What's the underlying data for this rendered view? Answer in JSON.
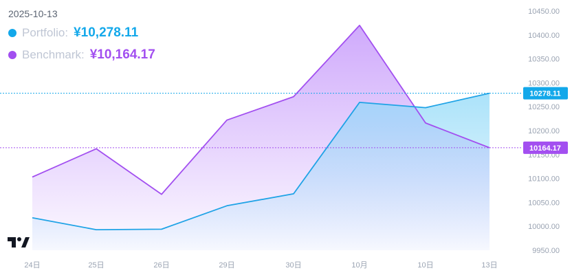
{
  "legend": {
    "date": "2025-10-13",
    "items": [
      {
        "name": "Portfolio:",
        "value": "¥10,278.11",
        "color": "#1aa7e8"
      },
      {
        "name": "Benchmark:",
        "value": "¥10,164.17",
        "color": "#a24ff0"
      }
    ]
  },
  "colors": {
    "portfolio": "#1fa3e6",
    "benchmark": "#a24ff0",
    "portfolio_tag": "#13a8ea",
    "benchmark_tag": "#a34ff0"
  },
  "logo_icon": "tradingview-logo-icon",
  "chart_data": {
    "type": "area",
    "x": [
      "24日",
      "25日",
      "26日",
      "29日",
      "30日",
      "10月",
      "10日",
      "13日"
    ],
    "ylim": [
      9950,
      10450
    ],
    "y_ticks": [
      "10450.00",
      "10400.00",
      "10350.00",
      "10300.00",
      "10250.00",
      "10200.00",
      "10150.00",
      "10100.00",
      "10050.00",
      "10000.00",
      "9950.00"
    ],
    "series": [
      {
        "name": "Portfolio",
        "values": [
          10018,
          9993,
          9994,
          10043,
          10068,
          10259,
          10248,
          10278.11
        ]
      },
      {
        "name": "Benchmark",
        "values": [
          10103,
          10162,
          10067,
          10222,
          10271,
          10420,
          10216,
          10164.17
        ]
      }
    ],
    "last_value_tags": [
      "10278.11",
      "10164.17"
    ],
    "grid": false,
    "legend_position": "top-left"
  }
}
